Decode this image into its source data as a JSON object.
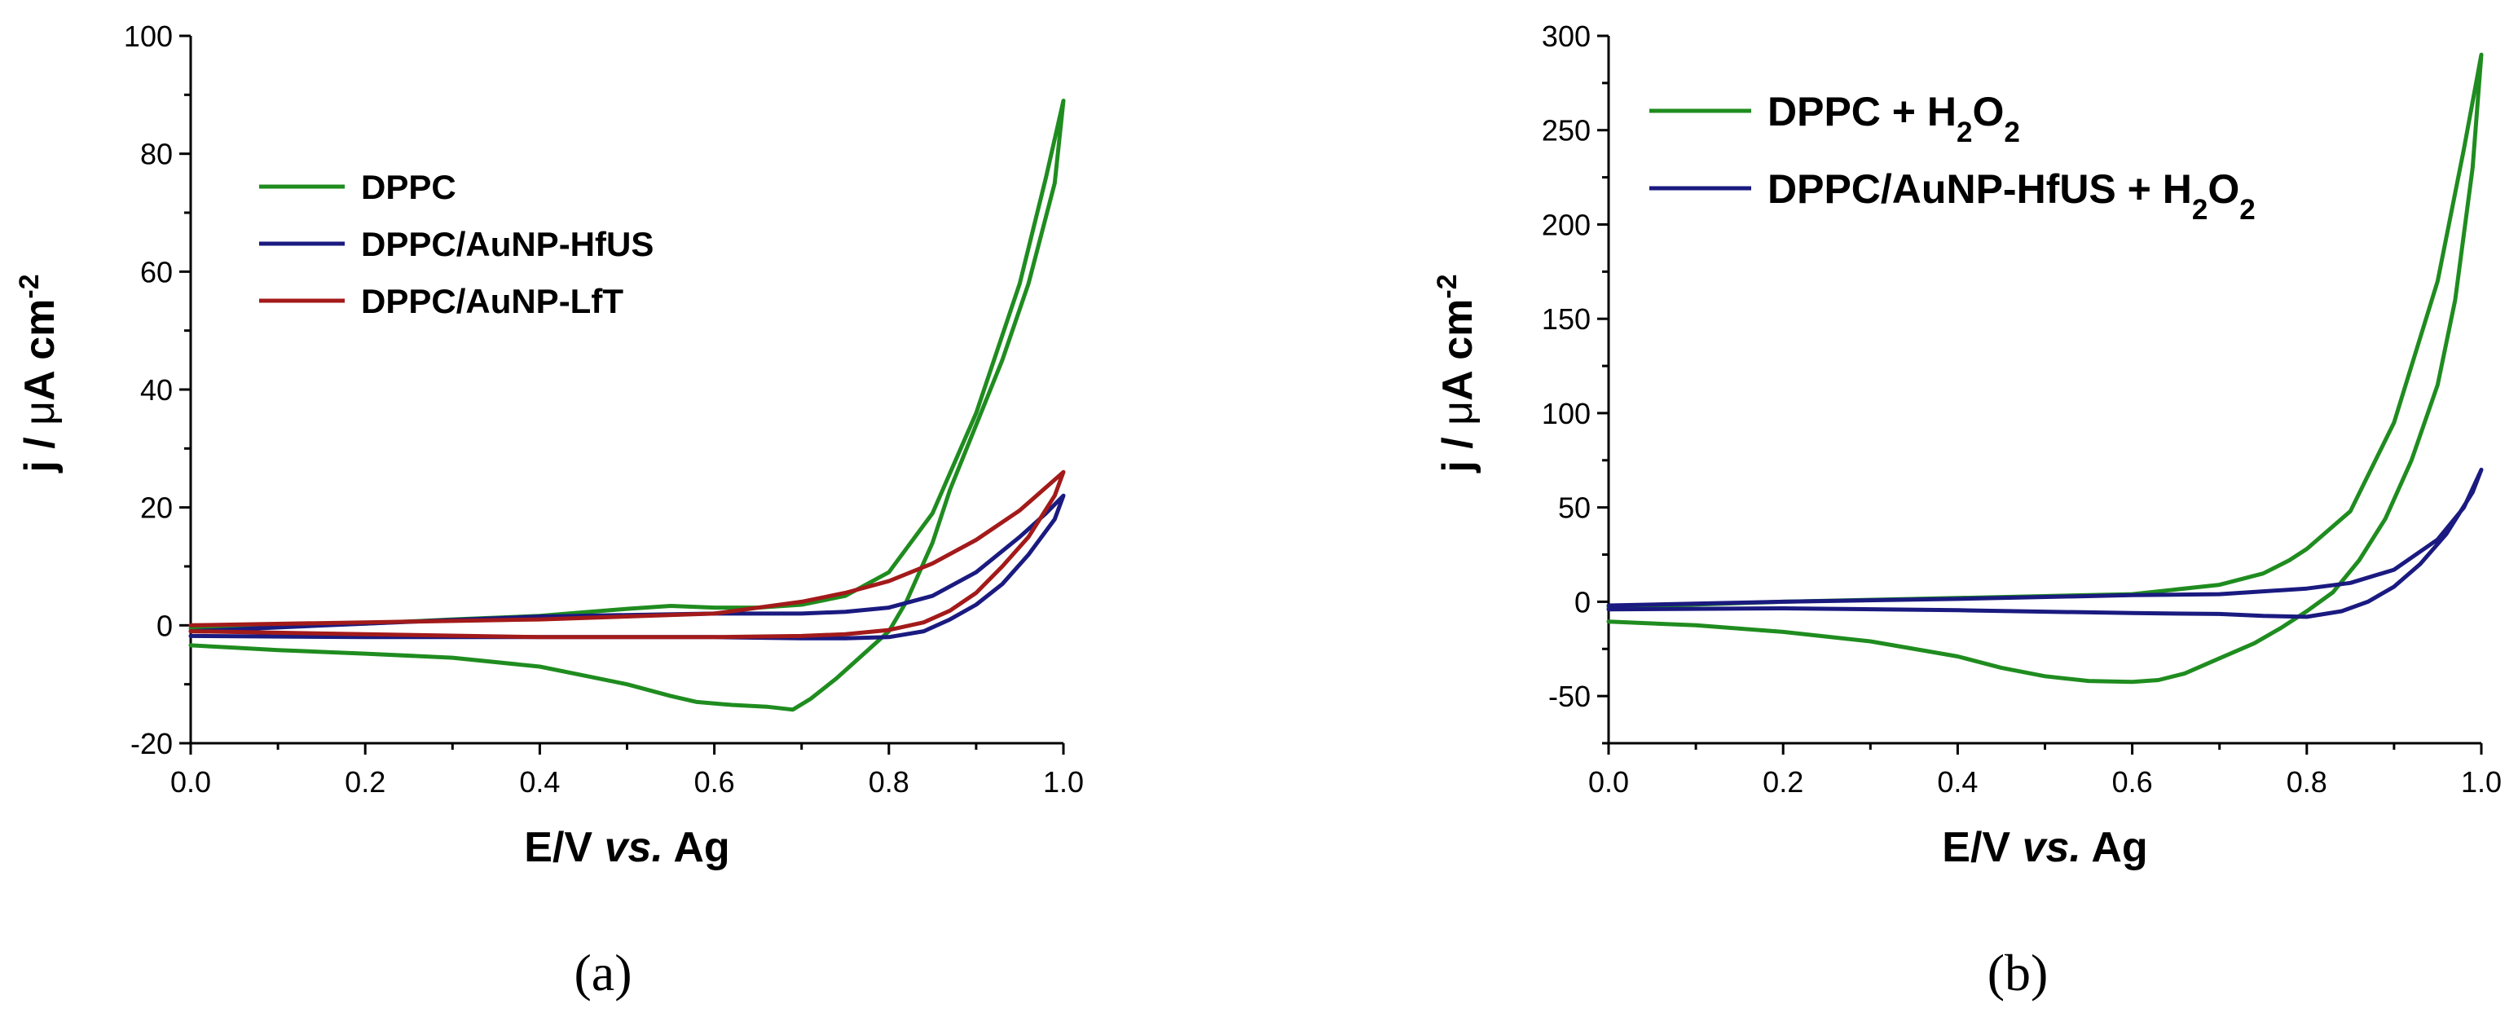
{
  "colors": {
    "green": "#1f8c1f",
    "navy": "#1a1a80",
    "darkred": "#a31a1a"
  },
  "chart_data": [
    {
      "panel_label": "(a)",
      "type": "line",
      "xlabel_main": "E/V ",
      "xlabel_italic": "vs.",
      "xlabel_end": " Ag",
      "ylabel_pre": "j / ",
      "ylabel_mu": "μ",
      "ylabel_post": "A cm",
      "ylabel_sup": "-2",
      "xlim": [
        0,
        1.0
      ],
      "ylim": [
        -20,
        100
      ],
      "xticks": [
        0.0,
        0.2,
        0.4,
        0.6,
        0.8,
        1.0
      ],
      "xtick_labels": [
        "0.0",
        "0.2",
        "0.4",
        "0.6",
        "0.8",
        "1.0"
      ],
      "yticks": [
        -20,
        0,
        20,
        40,
        60,
        80,
        100
      ],
      "ytick_labels": [
        "-20",
        "0",
        "20",
        "40",
        "60",
        "80",
        "100"
      ],
      "legend_position": "upper-left",
      "series": [
        {
          "name": "DPPC",
          "legend": [
            {
              "t": "DPPC"
            }
          ],
          "color": "#1f8c1f",
          "x": [
            0.0,
            0.1,
            0.2,
            0.3,
            0.4,
            0.45,
            0.5,
            0.55,
            0.6,
            0.65,
            0.7,
            0.75,
            0.8,
            0.85,
            0.9,
            0.95,
            0.98,
            1.0,
            0.99,
            0.96,
            0.93,
            0.9,
            0.87,
            0.85,
            0.82,
            0.8,
            0.77,
            0.74,
            0.71,
            0.69,
            0.66,
            0.62,
            0.58,
            0.55,
            0.5,
            0.45,
            0.4,
            0.3,
            0.2,
            0.1,
            0.05,
            0.0
          ],
          "y": [
            -0.5,
            -0.2,
            0.3,
            1.0,
            1.6,
            2.2,
            2.8,
            3.3,
            3.0,
            3.0,
            3.5,
            5.0,
            9.0,
            19.0,
            36.0,
            58.0,
            76.0,
            89.0,
            75.0,
            58.0,
            45.0,
            34.0,
            23.0,
            14.0,
            4.0,
            -1.0,
            -5.0,
            -9.0,
            -12.5,
            -14.3,
            -13.8,
            -13.5,
            -13.0,
            -12.0,
            -10.0,
            -8.5,
            -7.0,
            -5.5,
            -4.8,
            -4.2,
            -3.8,
            -3.4
          ]
        },
        {
          "name": "DPPC/AuNP-HfUS",
          "legend": [
            {
              "t": "DPPC/AuNP-HfUS"
            }
          ],
          "color": "#1a1a80",
          "x": [
            0.0,
            0.2,
            0.4,
            0.6,
            0.7,
            0.75,
            0.8,
            0.85,
            0.9,
            0.95,
            0.98,
            1.0,
            0.99,
            0.96,
            0.93,
            0.9,
            0.87,
            0.84,
            0.8,
            0.75,
            0.7,
            0.6,
            0.4,
            0.2,
            0.0
          ],
          "y": [
            -1.0,
            0.3,
            1.5,
            2.0,
            2.0,
            2.3,
            3.0,
            5.0,
            9.0,
            15.0,
            19.0,
            22.0,
            18.0,
            12.0,
            7.0,
            3.5,
            1.0,
            -1.0,
            -2.0,
            -2.2,
            -2.2,
            -2.0,
            -2.0,
            -2.0,
            -1.8
          ]
        },
        {
          "name": "DPPC/AuNP-LfT",
          "legend": [
            {
              "t": "DPPC/AuNP-LfT"
            }
          ],
          "color": "#a31a1a",
          "x": [
            0.0,
            0.2,
            0.4,
            0.6,
            0.7,
            0.75,
            0.8,
            0.85,
            0.9,
            0.95,
            1.0,
            0.99,
            0.96,
            0.93,
            0.9,
            0.87,
            0.84,
            0.8,
            0.75,
            0.7,
            0.6,
            0.4,
            0.2,
            0.0
          ],
          "y": [
            0.0,
            0.5,
            1.0,
            2.0,
            4.0,
            5.5,
            7.5,
            10.5,
            14.5,
            19.5,
            26.0,
            22.0,
            15.0,
            10.0,
            5.5,
            2.5,
            0.5,
            -0.8,
            -1.5,
            -1.8,
            -2.0,
            -2.0,
            -1.5,
            -1.0
          ]
        }
      ]
    },
    {
      "panel_label": "(b)",
      "type": "line",
      "xlabel_main": "E/V ",
      "xlabel_italic": "vs.",
      "xlabel_end": " Ag",
      "ylabel_pre": "j / ",
      "ylabel_mu": "μ",
      "ylabel_post": "A cm",
      "ylabel_sup": "-2",
      "xlim": [
        0,
        1.0
      ],
      "ylim": [
        -75,
        300
      ],
      "xticks": [
        0.0,
        0.2,
        0.4,
        0.6,
        0.8,
        1.0
      ],
      "xtick_labels": [
        "0.0",
        "0.2",
        "0.4",
        "0.6",
        "0.8",
        "1.0"
      ],
      "yticks": [
        -50,
        0,
        50,
        100,
        150,
        200,
        250,
        300
      ],
      "ytick_labels": [
        "-50",
        "0",
        "50",
        "100",
        "150",
        "200",
        "250",
        "300"
      ],
      "legend_position": "upper-left",
      "series": [
        {
          "name": "DPPC + H2O2",
          "legend": [
            {
              "t": "DPPC + H"
            },
            {
              "sub": "2"
            },
            {
              "t": "O"
            },
            {
              "sub": "2"
            }
          ],
          "color": "#1f8c1f",
          "x": [
            0.0,
            0.2,
            0.4,
            0.6,
            0.7,
            0.75,
            0.78,
            0.8,
            0.85,
            0.9,
            0.95,
            0.98,
            1.0,
            0.99,
            0.97,
            0.95,
            0.92,
            0.89,
            0.86,
            0.83,
            0.8,
            0.77,
            0.74,
            0.7,
            0.66,
            0.63,
            0.6,
            0.55,
            0.5,
            0.45,
            0.4,
            0.3,
            0.2,
            0.1,
            0.0
          ],
          "y": [
            -3.0,
            0.0,
            2.0,
            4.0,
            9.0,
            15.0,
            22.0,
            28.0,
            48.0,
            95.0,
            170.0,
            240.0,
            290.0,
            230.0,
            160.0,
            115.0,
            75.0,
            44.0,
            22.0,
            5.0,
            -5.0,
            -14.0,
            -22.0,
            -30.0,
            -38.0,
            -41.5,
            -42.5,
            -42.0,
            -39.5,
            -35.0,
            -29.0,
            -21.0,
            -16.0,
            -12.5,
            -10.5
          ]
        },
        {
          "name": "DPPC/AuNP-HfUS + H2O2",
          "legend": [
            {
              "t": "DPPC/AuNP-HfUS + H"
            },
            {
              "sub": "2"
            },
            {
              "t": "O"
            },
            {
              "sub": "2"
            }
          ],
          "color": "#1a1a80",
          "x": [
            0.0,
            0.2,
            0.4,
            0.6,
            0.7,
            0.8,
            0.85,
            0.9,
            0.95,
            0.98,
            1.0,
            0.99,
            0.96,
            0.93,
            0.9,
            0.87,
            0.84,
            0.8,
            0.75,
            0.7,
            0.6,
            0.4,
            0.2,
            0.0
          ],
          "y": [
            -2.0,
            0.0,
            1.5,
            3.5,
            4.0,
            7.0,
            10.0,
            17.0,
            33.0,
            50.0,
            70.0,
            58.0,
            36.0,
            20.0,
            8.0,
            0.0,
            -5.0,
            -8.0,
            -7.5,
            -6.5,
            -6.0,
            -4.5,
            -3.5,
            -4.0
          ]
        }
      ]
    }
  ]
}
